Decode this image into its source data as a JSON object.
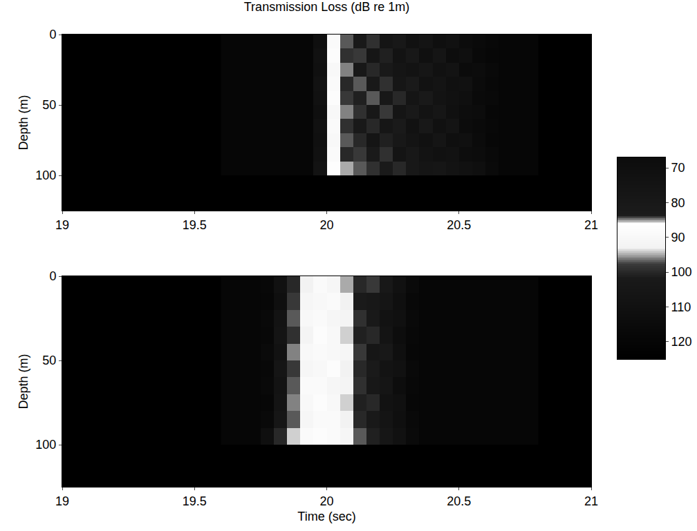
{
  "chart_data": {
    "type": "heatmap",
    "title": "Transmission Loss (dB re 1m)",
    "xlabel": "Time (sec)",
    "ylabel": "Depth (m)",
    "colorbar": {
      "range": [
        67,
        125
      ],
      "ticks": [
        70,
        80,
        90,
        100,
        110,
        120
      ]
    },
    "panels": [
      {
        "x": [
          19.625,
          19.675,
          19.725,
          19.775,
          19.825,
          19.875,
          19.925,
          19.975,
          20.025,
          20.075,
          20.125,
          20.175,
          20.225,
          20.275,
          20.325,
          20.375,
          20.425,
          20.475,
          20.525,
          20.575,
          20.625,
          20.675,
          20.725,
          20.775
        ],
        "y": [
          5,
          15,
          25,
          35,
          45,
          55,
          65,
          75,
          85,
          95
        ],
        "z": [
          [
            120,
            120,
            120,
            120,
            120,
            120,
            120,
            112,
            89,
            97,
            103,
            99,
            106,
            104,
            110,
            107,
            112,
            110,
            114,
            116,
            118,
            120,
            120,
            120
          ],
          [
            120,
            120,
            120,
            120,
            120,
            120,
            120,
            110,
            88,
            99,
            98,
            105,
            101,
            108,
            104,
            111,
            106,
            113,
            112,
            117,
            119,
            120,
            120,
            120
          ],
          [
            120,
            120,
            120,
            120,
            120,
            120,
            120,
            111,
            90,
            96,
            104,
            100,
            103,
            106,
            108,
            105,
            110,
            108,
            115,
            114,
            117,
            120,
            120,
            120
          ],
          [
            120,
            120,
            120,
            120,
            120,
            120,
            120,
            109,
            89,
            100,
            97,
            103,
            99,
            105,
            102,
            109,
            107,
            111,
            110,
            115,
            118,
            120,
            120,
            120
          ],
          [
            120,
            120,
            120,
            120,
            120,
            120,
            120,
            110,
            88,
            98,
            101,
            97,
            104,
            100,
            106,
            103,
            108,
            110,
            112,
            116,
            117,
            120,
            120,
            120
          ],
          [
            120,
            120,
            120,
            120,
            120,
            120,
            120,
            112,
            90,
            96,
            99,
            104,
            98,
            106,
            103,
            108,
            105,
            111,
            113,
            114,
            119,
            120,
            120,
            120
          ],
          [
            120,
            120,
            120,
            120,
            120,
            120,
            120,
            110,
            89,
            99,
            103,
            100,
            105,
            102,
            109,
            104,
            110,
            107,
            114,
            116,
            118,
            120,
            120,
            120
          ],
          [
            120,
            120,
            120,
            120,
            120,
            120,
            120,
            111,
            90,
            97,
            100,
            106,
            101,
            104,
            107,
            110,
            106,
            112,
            111,
            115,
            119,
            120,
            120,
            120
          ],
          [
            120,
            120,
            120,
            120,
            120,
            120,
            120,
            110,
            89,
            100,
            98,
            102,
            99,
            107,
            104,
            108,
            110,
            109,
            113,
            114,
            117,
            120,
            120,
            120
          ],
          [
            120,
            120,
            120,
            120,
            120,
            120,
            120,
            108,
            87,
            95,
            97,
            99,
            102,
            100,
            104,
            106,
            105,
            108,
            110,
            112,
            116,
            120,
            120,
            120
          ]
        ],
        "xlim": [
          19,
          21
        ],
        "xticks": [
          19,
          19.5,
          20,
          20.5,
          21
        ],
        "ylim": [
          0,
          125
        ],
        "yticks": [
          0,
          50,
          100
        ]
      },
      {
        "x": [
          19.625,
          19.675,
          19.725,
          19.775,
          19.825,
          19.875,
          19.925,
          19.975,
          20.025,
          20.075,
          20.125,
          20.175,
          20.225,
          20.275,
          20.325,
          20.375,
          20.425,
          20.475,
          20.525,
          20.575,
          20.625,
          20.675,
          20.725,
          20.775
        ],
        "y": [
          5,
          15,
          25,
          35,
          45,
          55,
          65,
          75,
          85,
          95
        ],
        "z": [
          [
            120,
            120,
            120,
            118,
            110,
            100,
            93,
            89,
            91,
            95,
            100,
            98,
            104,
            110,
            116,
            120,
            120,
            120,
            120,
            120,
            120,
            120,
            120,
            120
          ],
          [
            120,
            120,
            120,
            119,
            112,
            98,
            91,
            90,
            89,
            93,
            102,
            104,
            106,
            112,
            118,
            120,
            120,
            120,
            120,
            120,
            120,
            120,
            120,
            120
          ],
          [
            120,
            120,
            120,
            117,
            108,
            97,
            90,
            89,
            91,
            92,
            99,
            103,
            109,
            111,
            117,
            120,
            120,
            120,
            120,
            120,
            120,
            120,
            120,
            120
          ],
          [
            120,
            120,
            120,
            118,
            107,
            99,
            92,
            88,
            90,
            94,
            101,
            100,
            107,
            113,
            118,
            120,
            120,
            120,
            120,
            120,
            120,
            120,
            120,
            120
          ],
          [
            120,
            120,
            120,
            116,
            109,
            96,
            90,
            89,
            90,
            91,
            98,
            105,
            104,
            112,
            119,
            120,
            120,
            120,
            120,
            120,
            120,
            120,
            120,
            120
          ],
          [
            120,
            120,
            120,
            118,
            106,
            98,
            91,
            90,
            88,
            93,
            100,
            102,
            108,
            110,
            117,
            120,
            120,
            120,
            120,
            120,
            120,
            120,
            120,
            120
          ],
          [
            120,
            120,
            120,
            117,
            108,
            97,
            89,
            89,
            91,
            92,
            99,
            104,
            106,
            113,
            118,
            120,
            120,
            120,
            120,
            120,
            120,
            120,
            120,
            120
          ],
          [
            120,
            120,
            120,
            119,
            107,
            96,
            90,
            88,
            90,
            94,
            101,
            100,
            109,
            111,
            119,
            120,
            120,
            120,
            120,
            120,
            120,
            120,
            120,
            120
          ],
          [
            120,
            120,
            120,
            117,
            105,
            97,
            91,
            89,
            89,
            93,
            100,
            103,
            107,
            112,
            117,
            120,
            120,
            120,
            120,
            120,
            120,
            120,
            120,
            120
          ],
          [
            120,
            120,
            120,
            112,
            100,
            94,
            89,
            88,
            89,
            91,
            97,
            101,
            105,
            110,
            116,
            120,
            120,
            120,
            120,
            120,
            120,
            120,
            120,
            120
          ]
        ],
        "xlim": [
          19,
          21
        ],
        "xticks": [
          19,
          19.5,
          20,
          20.5,
          21
        ],
        "ylim": [
          0,
          125
        ],
        "yticks": [
          0,
          50,
          100
        ]
      }
    ]
  }
}
